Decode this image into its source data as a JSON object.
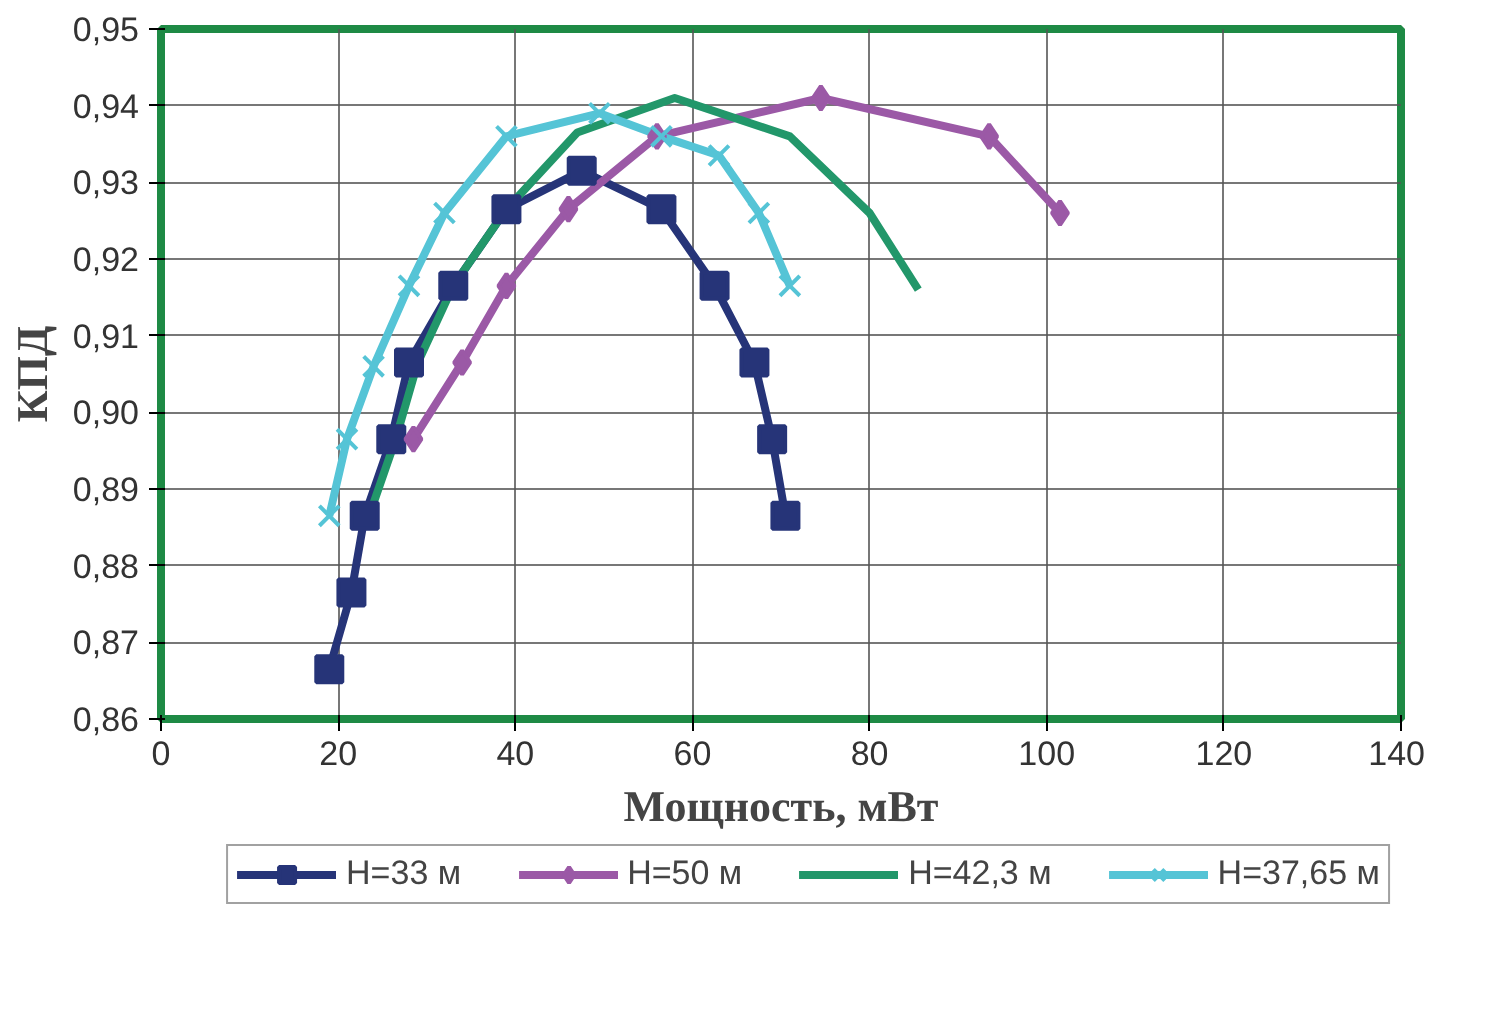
{
  "chart_data": {
    "type": "line",
    "xlabel": "Мощность, мВт",
    "ylabel": "КПД",
    "xlim": [
      0,
      140
    ],
    "xticks": [
      0,
      20,
      40,
      60,
      80,
      100,
      120,
      140
    ],
    "ylim": [
      0.86,
      0.95
    ],
    "yticks": [
      {
        "value": 0.86,
        "label": "0,86"
      },
      {
        "value": 0.87,
        "label": "0,87"
      },
      {
        "value": 0.88,
        "label": "0,88"
      },
      {
        "value": 0.89,
        "label": "0,89"
      },
      {
        "value": 0.9,
        "label": "0,90"
      },
      {
        "value": 0.91,
        "label": "0,91"
      },
      {
        "value": 0.92,
        "label": "0,92"
      },
      {
        "value": 0.93,
        "label": "0,93"
      },
      {
        "value": 0.94,
        "label": "0,94"
      },
      {
        "value": 0.95,
        "label": "0,95"
      }
    ],
    "grid": true,
    "legend": "bottom",
    "series": [
      {
        "name": "H=33 м",
        "color": "#263478",
        "marker": "square",
        "x": [
          19,
          21.5,
          23,
          26,
          28,
          33,
          39,
          47.5,
          56.5,
          62.5,
          67,
          69,
          70.5
        ],
        "values": [
          0.8665,
          0.8765,
          0.8865,
          0.8965,
          0.9065,
          0.9165,
          0.9265,
          0.9315,
          0.9265,
          0.9165,
          0.9065,
          0.8965,
          0.8865
        ]
      },
      {
        "name": "H=50 м",
        "color": "#9b59a6",
        "marker": "diamond",
        "x": [
          28.5,
          34,
          39,
          46,
          56,
          74.5,
          93.5,
          101.5
        ],
        "values": [
          0.8965,
          0.9065,
          0.9165,
          0.9265,
          0.936,
          0.941,
          0.936,
          0.926
        ]
      },
      {
        "name": "H=42,3 м",
        "color": "#22976a",
        "marker": "none",
        "x": [
          23.5,
          26.5,
          29,
          33,
          39,
          47,
          58,
          71,
          80,
          85.5
        ],
        "values": [
          0.8865,
          0.8965,
          0.9065,
          0.9165,
          0.9265,
          0.9365,
          0.941,
          0.936,
          0.926,
          0.916
        ]
      },
      {
        "name": "H=37,65 м",
        "color": "#55c4d6",
        "marker": "cross",
        "x": [
          19,
          21,
          24,
          28,
          32,
          39,
          49.5,
          56.5,
          63,
          67.5,
          71
        ],
        "values": [
          0.8865,
          0.8965,
          0.906,
          0.9165,
          0.926,
          0.936,
          0.939,
          0.936,
          0.9335,
          0.926,
          0.9165
        ]
      }
    ]
  }
}
